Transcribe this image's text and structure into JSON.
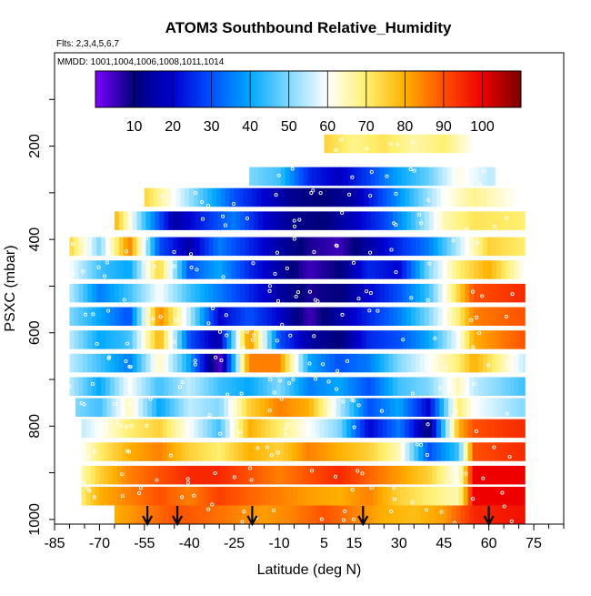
{
  "chart_data": {
    "type": "heatmap",
    "title": "ATOM3 Southbound Relative_Humidity",
    "flights_note": "Flts: 2,3,4,5,6,7",
    "dates_note": "MMDD: 1001,1004,1006,1008,1011,1014",
    "xlabel": "Latitude (deg N)",
    "ylabel": "PSXC (mbar)",
    "xlim": [
      -85,
      85
    ],
    "ylim": [
      1010,
      0
    ],
    "x_ticks": [
      -85,
      -70,
      -55,
      -40,
      -25,
      -10,
      5,
      15,
      30,
      45,
      60,
      75
    ],
    "y_ticks": [
      200,
      400,
      600,
      800,
      1000
    ],
    "colorbar": {
      "range": [
        0,
        110
      ],
      "ticks": [
        10,
        20,
        30,
        40,
        50,
        60,
        70,
        80,
        90,
        100
      ],
      "stops": [
        {
          "v": 0,
          "c": "#7b00ff"
        },
        {
          "v": 10,
          "c": "#00007a"
        },
        {
          "v": 20,
          "c": "#0000d0"
        },
        {
          "v": 30,
          "c": "#0050ff"
        },
        {
          "v": 40,
          "c": "#00a8ff"
        },
        {
          "v": 50,
          "c": "#80d8ff"
        },
        {
          "v": 60,
          "c": "#ffffff"
        },
        {
          "v": 70,
          "c": "#fff070"
        },
        {
          "v": 80,
          "c": "#ffb000"
        },
        {
          "v": 90,
          "c": "#ff5000"
        },
        {
          "v": 100,
          "c": "#ee0000"
        },
        {
          "v": 110,
          "c": "#7a0000"
        }
      ]
    },
    "layers": [
      {
        "p": 195,
        "lat_min": 5,
        "lat_max": 55,
        "profile": [
          [
            5,
            75
          ],
          [
            15,
            68
          ],
          [
            25,
            72
          ],
          [
            35,
            66
          ],
          [
            45,
            70
          ],
          [
            55,
            60
          ]
        ]
      },
      {
        "p": 265,
        "lat_min": -20,
        "lat_max": 62,
        "profile": [
          [
            -20,
            50
          ],
          [
            -10,
            45
          ],
          [
            0,
            25
          ],
          [
            10,
            18
          ],
          [
            20,
            28
          ],
          [
            30,
            40
          ],
          [
            40,
            48
          ],
          [
            50,
            62
          ],
          [
            60,
            55
          ]
        ]
      },
      {
        "p": 310,
        "lat_min": -55,
        "lat_max": 70,
        "profile": [
          [
            -55,
            75
          ],
          [
            -45,
            60
          ],
          [
            -35,
            45
          ],
          [
            -25,
            30
          ],
          [
            -15,
            20
          ],
          [
            -5,
            12
          ],
          [
            5,
            10
          ],
          [
            15,
            15
          ],
          [
            25,
            30
          ],
          [
            35,
            45
          ],
          [
            45,
            60
          ],
          [
            55,
            68
          ],
          [
            70,
            60
          ]
        ]
      },
      {
        "p": 360,
        "lat_min": -65,
        "lat_max": 72,
        "profile": [
          [
            -65,
            80
          ],
          [
            -55,
            45
          ],
          [
            -45,
            15
          ],
          [
            -35,
            25
          ],
          [
            -25,
            35
          ],
          [
            -15,
            20
          ],
          [
            -5,
            12
          ],
          [
            5,
            10
          ],
          [
            15,
            18
          ],
          [
            25,
            28
          ],
          [
            35,
            45
          ],
          [
            45,
            65
          ],
          [
            55,
            72
          ],
          [
            72,
            70
          ]
        ]
      },
      {
        "p": 415,
        "lat_min": -80,
        "lat_max": 72,
        "profile": [
          [
            -80,
            75
          ],
          [
            -70,
            50
          ],
          [
            -60,
            85
          ],
          [
            -50,
            30
          ],
          [
            -40,
            15
          ],
          [
            -30,
            35
          ],
          [
            -20,
            25
          ],
          [
            -10,
            15
          ],
          [
            0,
            8
          ],
          [
            10,
            5
          ],
          [
            20,
            15
          ],
          [
            30,
            25
          ],
          [
            40,
            35
          ],
          [
            50,
            55
          ],
          [
            60,
            75
          ],
          [
            72,
            70
          ]
        ]
      },
      {
        "p": 465,
        "lat_min": -80,
        "lat_max": 72,
        "profile": [
          [
            -80,
            60
          ],
          [
            -70,
            45
          ],
          [
            -60,
            40
          ],
          [
            -50,
            75
          ],
          [
            -40,
            30
          ],
          [
            -30,
            40
          ],
          [
            -20,
            25
          ],
          [
            -10,
            15
          ],
          [
            0,
            5
          ],
          [
            10,
            10
          ],
          [
            20,
            25
          ],
          [
            30,
            20
          ],
          [
            40,
            50
          ],
          [
            50,
            70
          ],
          [
            60,
            80
          ],
          [
            72,
            60
          ]
        ]
      },
      {
        "p": 515,
        "lat_min": -80,
        "lat_max": 72,
        "profile": [
          [
            -80,
            55
          ],
          [
            -70,
            35
          ],
          [
            -60,
            45
          ],
          [
            -50,
            60
          ],
          [
            -40,
            45
          ],
          [
            -30,
            35
          ],
          [
            -20,
            25
          ],
          [
            -10,
            15
          ],
          [
            0,
            8
          ],
          [
            10,
            10
          ],
          [
            20,
            20
          ],
          [
            30,
            30
          ],
          [
            40,
            45
          ],
          [
            50,
            75
          ],
          [
            55,
            90
          ],
          [
            72,
            95
          ]
        ]
      },
      {
        "p": 565,
        "lat_min": -80,
        "lat_max": 72,
        "profile": [
          [
            -80,
            50
          ],
          [
            -70,
            40
          ],
          [
            -60,
            30
          ],
          [
            -50,
            85
          ],
          [
            -40,
            55
          ],
          [
            -30,
            20
          ],
          [
            -20,
            30
          ],
          [
            -10,
            20
          ],
          [
            0,
            5
          ],
          [
            10,
            15
          ],
          [
            20,
            25
          ],
          [
            30,
            35
          ],
          [
            40,
            50
          ],
          [
            50,
            70
          ],
          [
            55,
            85
          ],
          [
            72,
            90
          ]
        ]
      },
      {
        "p": 615,
        "lat_min": -80,
        "lat_max": 72,
        "profile": [
          [
            -80,
            55
          ],
          [
            -70,
            40
          ],
          [
            -60,
            45
          ],
          [
            -50,
            80
          ],
          [
            -40,
            30
          ],
          [
            -30,
            15
          ],
          [
            -20,
            85
          ],
          [
            -10,
            30
          ],
          [
            0,
            15
          ],
          [
            10,
            10
          ],
          [
            20,
            25
          ],
          [
            30,
            30
          ],
          [
            40,
            40
          ],
          [
            50,
            60
          ],
          [
            55,
            80
          ],
          [
            72,
            90
          ]
        ]
      },
      {
        "p": 665,
        "lat_min": -80,
        "lat_max": 72,
        "profile": [
          [
            -80,
            55
          ],
          [
            -70,
            45
          ],
          [
            -60,
            35
          ],
          [
            -50,
            65
          ],
          [
            -40,
            40
          ],
          [
            -30,
            2
          ],
          [
            -20,
            85
          ],
          [
            -10,
            85
          ],
          [
            0,
            40
          ],
          [
            10,
            30
          ],
          [
            20,
            35
          ],
          [
            30,
            50
          ],
          [
            40,
            60
          ],
          [
            50,
            70
          ],
          [
            55,
            80
          ],
          [
            72,
            55
          ]
        ]
      },
      {
        "p": 715,
        "lat_min": -80,
        "lat_max": 72,
        "profile": [
          [
            -80,
            55
          ],
          [
            -70,
            40
          ],
          [
            -60,
            60
          ],
          [
            -50,
            45
          ],
          [
            -40,
            55
          ],
          [
            -30,
            45
          ],
          [
            -20,
            40
          ],
          [
            -10,
            50
          ],
          [
            0,
            35
          ],
          [
            10,
            40
          ],
          [
            20,
            30
          ],
          [
            30,
            45
          ],
          [
            40,
            50
          ],
          [
            50,
            65
          ],
          [
            55,
            55
          ],
          [
            72,
            45
          ]
        ]
      },
      {
        "p": 760,
        "lat_min": -78,
        "lat_max": 72,
        "profile": [
          [
            -78,
            50
          ],
          [
            -70,
            45
          ],
          [
            -60,
            65
          ],
          [
            -50,
            40
          ],
          [
            -40,
            55
          ],
          [
            -30,
            50
          ],
          [
            -20,
            75
          ],
          [
            -10,
            85
          ],
          [
            0,
            80
          ],
          [
            10,
            55
          ],
          [
            20,
            30
          ],
          [
            30,
            40
          ],
          [
            40,
            20
          ],
          [
            50,
            70
          ],
          [
            55,
            60
          ],
          [
            72,
            50
          ]
        ]
      },
      {
        "p": 805,
        "lat_min": -76,
        "lat_max": 72,
        "profile": [
          [
            -76,
            55
          ],
          [
            -70,
            60
          ],
          [
            -60,
            70
          ],
          [
            -50,
            75
          ],
          [
            -40,
            60
          ],
          [
            -30,
            45
          ],
          [
            -20,
            80
          ],
          [
            -10,
            70
          ],
          [
            0,
            60
          ],
          [
            10,
            50
          ],
          [
            20,
            20
          ],
          [
            30,
            35
          ],
          [
            40,
            10
          ],
          [
            50,
            80
          ],
          [
            55,
            90
          ],
          [
            72,
            95
          ]
        ]
      },
      {
        "p": 855,
        "lat_min": -76,
        "lat_max": 72,
        "profile": [
          [
            -76,
            60
          ],
          [
            -70,
            70
          ],
          [
            -60,
            80
          ],
          [
            -50,
            85
          ],
          [
            -40,
            75
          ],
          [
            -30,
            70
          ],
          [
            -20,
            80
          ],
          [
            -10,
            75
          ],
          [
            0,
            85
          ],
          [
            10,
            80
          ],
          [
            20,
            75
          ],
          [
            30,
            65
          ],
          [
            40,
            30
          ],
          [
            50,
            45
          ],
          [
            55,
            90
          ],
          [
            72,
            95
          ]
        ]
      },
      {
        "p": 905,
        "lat_min": -76,
        "lat_max": 72,
        "profile": [
          [
            -76,
            65
          ],
          [
            -70,
            75
          ],
          [
            -60,
            85
          ],
          [
            -50,
            90
          ],
          [
            -40,
            95
          ],
          [
            -30,
            95
          ],
          [
            -20,
            90
          ],
          [
            -10,
            85
          ],
          [
            0,
            90
          ],
          [
            10,
            95
          ],
          [
            20,
            88
          ],
          [
            30,
            82
          ],
          [
            40,
            75
          ],
          [
            50,
            60
          ],
          [
            55,
            100
          ],
          [
            72,
            100
          ]
        ]
      },
      {
        "p": 950,
        "lat_min": -76,
        "lat_max": 72,
        "profile": [
          [
            -76,
            70
          ],
          [
            -70,
            80
          ],
          [
            -60,
            85
          ],
          [
            -50,
            90
          ],
          [
            -40,
            85
          ],
          [
            -30,
            92
          ],
          [
            -20,
            88
          ],
          [
            -10,
            85
          ],
          [
            0,
            82
          ],
          [
            10,
            80
          ],
          [
            20,
            85
          ],
          [
            30,
            75
          ],
          [
            40,
            70
          ],
          [
            50,
            65
          ],
          [
            55,
            100
          ],
          [
            72,
            100
          ]
        ]
      },
      {
        "p": 990,
        "lat_min": -65,
        "lat_max": 72,
        "profile": [
          [
            -65,
            80
          ],
          [
            -55,
            85
          ],
          [
            -45,
            90
          ],
          [
            -35,
            88
          ],
          [
            -25,
            85
          ],
          [
            -15,
            82
          ],
          [
            -5,
            85
          ],
          [
            5,
            90
          ],
          [
            15,
            85
          ],
          [
            25,
            80
          ],
          [
            35,
            78
          ],
          [
            45,
            82
          ],
          [
            55,
            95
          ],
          [
            72,
            98
          ]
        ]
      }
    ],
    "arrows_lat": [
      -54,
      -44,
      -19,
      18,
      60
    ]
  }
}
